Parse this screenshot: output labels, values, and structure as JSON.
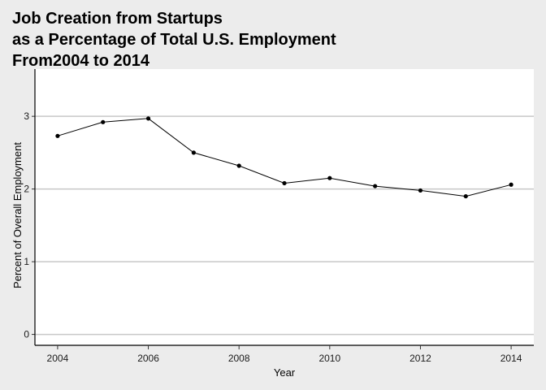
{
  "chart_data": {
    "type": "line",
    "title_lines": [
      "Job Creation from Startups",
      "as a Percentage of Total U.S. Employment",
      "From2004 to 2014"
    ],
    "xlabel": "Year",
    "ylabel": "Percent of Overall Employment",
    "x": [
      2004,
      2005,
      2006,
      2007,
      2008,
      2009,
      2010,
      2011,
      2012,
      2013,
      2014
    ],
    "series": [
      {
        "values": [
          2.73,
          2.92,
          2.97,
          2.5,
          2.32,
          2.08,
          2.15,
          2.04,
          1.98,
          1.9,
          2.06
        ]
      }
    ],
    "xticks": [
      2004,
      2006,
      2008,
      2010,
      2012,
      2014
    ],
    "xtick_labels": [
      "2004",
      "2006",
      "2008",
      "2010",
      "2012",
      "2014"
    ],
    "yticks": [
      0,
      1,
      2,
      3
    ],
    "ytick_labels": [
      "0",
      "1",
      "2",
      "3"
    ],
    "xlim": [
      2003.5,
      2014.5
    ],
    "ylim": [
      -0.15,
      3.65
    ],
    "grid": "horizontal-major",
    "legend": "none",
    "colors": {
      "background": "#ececec",
      "panel": "#ffffff",
      "gridline": "#c8c8c8",
      "line": "#000000",
      "point": "#000000"
    }
  }
}
